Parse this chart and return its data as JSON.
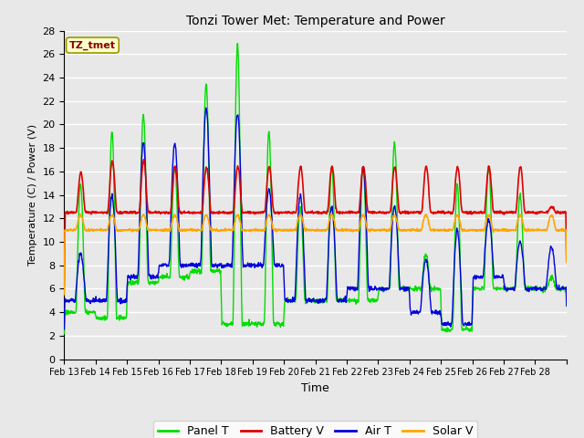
{
  "title": "Tonzi Tower Met: Temperature and Power",
  "xlabel": "Time",
  "ylabel": "Temperature (C) / Power (V)",
  "annotation": "TZ_tmet",
  "ylim": [
    0,
    28
  ],
  "yticks": [
    0,
    2,
    4,
    6,
    8,
    10,
    12,
    14,
    16,
    18,
    20,
    22,
    24,
    26,
    28
  ],
  "xlabels": [
    "Feb 13",
    "Feb 14",
    "Feb 15",
    "Feb 16",
    "Feb 17",
    "Feb 18",
    "Feb 19",
    "Feb 20",
    "Feb 21",
    "Feb 22",
    "Feb 23",
    "Feb 24",
    "Feb 25",
    "Feb 26",
    "Feb 27",
    "Feb 28"
  ],
  "colors": {
    "panel_t": "#00DD00",
    "battery_v": "#DD0000",
    "air_t": "#0000DD",
    "solar_v": "#FFA500"
  },
  "legend_labels": [
    "Panel T",
    "Battery V",
    "Air T",
    "Solar V"
  ],
  "background_color": "#E8E8E8",
  "grid_color": "#FFFFFF"
}
